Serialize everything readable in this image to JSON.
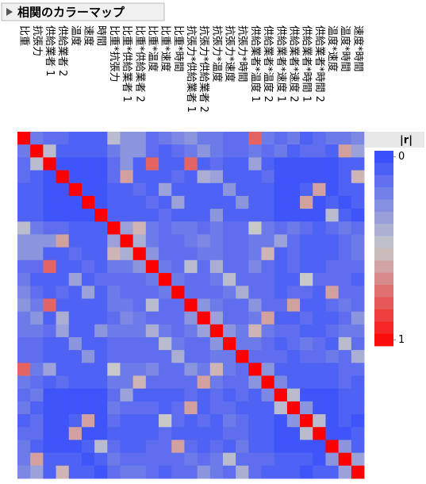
{
  "chart_data": {
    "type": "heatmap",
    "title": "相関のカラーマップ",
    "legend_title": "|r|",
    "labels": [
      "比重",
      "抗張力",
      "供給業者 1",
      "供給業者 2",
      "温度",
      "速度",
      "時間",
      "比重*抗張力",
      "比重*供給業者 1",
      "比重*供給業者 2",
      "比重*温度",
      "比重*速度",
      "比重*時間",
      "抗張力*供給業者 1",
      "抗張力*供給業者 2",
      "抗張力*温度",
      "抗張力*速度",
      "抗張力*時間",
      "供給業者*温度 1",
      "供給業者*温度 2",
      "供給業者*速度 1",
      "供給業者*速度 2",
      "供給業者*時間 1",
      "供給業者*時間 2",
      "温度*速度",
      "温度*時間",
      "速度*時間"
    ],
    "color_scale": {
      "low": "#3048ff",
      "mid": "#c8c8c8",
      "high": "#ff0000"
    },
    "legend_ticks": [
      0,
      1
    ],
    "matrix": [
      [
        1,
        0.2,
        0.15,
        0.15,
        0.1,
        0.1,
        0.1,
        0.45,
        0.3,
        0.3,
        0.15,
        0.2,
        0.25,
        0.3,
        0.2,
        0.2,
        0.15,
        0.15,
        0.75,
        0.2,
        0.15,
        0.2,
        0.1,
        0.15,
        0.2,
        0.2,
        0.25
      ],
      [
        0.2,
        1,
        0.45,
        0.1,
        0.1,
        0.1,
        0.1,
        0.2,
        0.3,
        0.3,
        0.15,
        0.1,
        0.15,
        0.2,
        0.3,
        0.2,
        0.15,
        0.15,
        0.2,
        0.15,
        0.2,
        0.1,
        0.15,
        0.15,
        0.1,
        0.6,
        0.35
      ],
      [
        0.15,
        0.45,
        1,
        0.05,
        0.05,
        0.05,
        0.05,
        0.15,
        0.3,
        0.1,
        0.75,
        0.1,
        0.1,
        0.75,
        0.1,
        0.15,
        0.1,
        0.1,
        0.35,
        0.1,
        0.05,
        0.05,
        0.05,
        0.05,
        0.05,
        0.1,
        0.1
      ],
      [
        0.15,
        0.1,
        0.05,
        1,
        0.05,
        0.05,
        0.05,
        0.15,
        0.6,
        0.1,
        0.1,
        0.1,
        0.15,
        0.1,
        0.4,
        0.35,
        0.1,
        0.1,
        0.1,
        0.15,
        0.05,
        0.05,
        0.05,
        0.05,
        0.05,
        0.1,
        0.55
      ],
      [
        0.1,
        0.1,
        0.05,
        0.05,
        1,
        0.05,
        0.05,
        0.1,
        0.1,
        0.15,
        0.1,
        0.35,
        0.1,
        0.1,
        0.1,
        0.1,
        0.3,
        0.1,
        0.1,
        0.1,
        0.05,
        0.05,
        0.1,
        0.6,
        0.05,
        0.1,
        0.1
      ],
      [
        0.1,
        0.1,
        0.05,
        0.05,
        0.05,
        1,
        0.05,
        0.1,
        0.1,
        0.1,
        0.15,
        0.1,
        0.35,
        0.1,
        0.1,
        0.1,
        0.1,
        0.3,
        0.1,
        0.1,
        0.05,
        0.05,
        0.6,
        0.05,
        0.1,
        0.05,
        0.1
      ],
      [
        0.1,
        0.1,
        0.05,
        0.05,
        0.05,
        0.05,
        1,
        0.1,
        0.1,
        0.1,
        0.1,
        0.15,
        0.1,
        0.1,
        0.1,
        0.3,
        0.1,
        0.1,
        0.1,
        0.1,
        0.05,
        0.05,
        0.05,
        0.05,
        0.45,
        0.1,
        0.05
      ],
      [
        0.45,
        0.2,
        0.15,
        0.15,
        0.1,
        0.1,
        0.1,
        1,
        0.35,
        0.55,
        0.2,
        0.15,
        0.2,
        0.2,
        0.15,
        0.2,
        0.15,
        0.15,
        0.5,
        0.2,
        0.15,
        0.2,
        0.15,
        0.1,
        0.15,
        0.2,
        0.15
      ],
      [
        0.3,
        0.3,
        0.3,
        0.6,
        0.1,
        0.1,
        0.1,
        0.35,
        1,
        0.4,
        0.2,
        0.15,
        0.15,
        0.2,
        0.25,
        0.2,
        0.15,
        0.15,
        0.2,
        0.2,
        0.35,
        0.15,
        0.1,
        0.1,
        0.1,
        0.15,
        0.2
      ],
      [
        0.3,
        0.3,
        0.1,
        0.1,
        0.15,
        0.1,
        0.1,
        0.55,
        0.4,
        1,
        0.3,
        0.15,
        0.15,
        0.15,
        0.2,
        0.2,
        0.15,
        0.15,
        0.2,
        0.55,
        0.1,
        0.15,
        0.1,
        0.1,
        0.1,
        0.15,
        0.2
      ],
      [
        0.15,
        0.15,
        0.75,
        0.1,
        0.1,
        0.15,
        0.1,
        0.2,
        0.2,
        0.3,
        1,
        0.2,
        0.15,
        0.45,
        0.15,
        0.4,
        0.15,
        0.15,
        0.25,
        0.15,
        0.1,
        0.15,
        0.1,
        0.1,
        0.15,
        0.15,
        0.15
      ],
      [
        0.2,
        0.1,
        0.1,
        0.1,
        0.35,
        0.1,
        0.15,
        0.15,
        0.15,
        0.15,
        0.2,
        1,
        0.2,
        0.15,
        0.15,
        0.2,
        0.45,
        0.15,
        0.15,
        0.15,
        0.1,
        0.1,
        0.5,
        0.15,
        0.15,
        0.15,
        0.1
      ],
      [
        0.25,
        0.15,
        0.1,
        0.15,
        0.1,
        0.35,
        0.1,
        0.2,
        0.15,
        0.15,
        0.15,
        0.2,
        1,
        0.15,
        0.15,
        0.15,
        0.2,
        0.4,
        0.15,
        0.15,
        0.1,
        0.15,
        0.15,
        0.1,
        0.6,
        0.15,
        0.15
      ],
      [
        0.3,
        0.2,
        0.75,
        0.1,
        0.1,
        0.1,
        0.1,
        0.2,
        0.2,
        0.15,
        0.45,
        0.15,
        0.15,
        1,
        0.3,
        0.2,
        0.15,
        0.15,
        0.3,
        0.15,
        0.15,
        0.6,
        0.1,
        0.1,
        0.15,
        0.2,
        0.15
      ],
      [
        0.2,
        0.3,
        0.1,
        0.4,
        0.1,
        0.1,
        0.1,
        0.15,
        0.25,
        0.2,
        0.15,
        0.15,
        0.15,
        0.3,
        1,
        0.35,
        0.15,
        0.15,
        0.2,
        0.6,
        0.1,
        0.1,
        0.15,
        0.1,
        0.1,
        0.15,
        0.3
      ],
      [
        0.2,
        0.2,
        0.15,
        0.35,
        0.1,
        0.1,
        0.3,
        0.2,
        0.2,
        0.2,
        0.4,
        0.2,
        0.15,
        0.2,
        0.35,
        1,
        0.3,
        0.2,
        0.55,
        0.2,
        0.15,
        0.15,
        0.1,
        0.1,
        0.15,
        0.2,
        0.2
      ],
      [
        0.15,
        0.15,
        0.1,
        0.1,
        0.3,
        0.1,
        0.1,
        0.15,
        0.15,
        0.15,
        0.15,
        0.45,
        0.2,
        0.15,
        0.15,
        0.3,
        1,
        0.2,
        0.2,
        0.15,
        0.1,
        0.15,
        0.2,
        0.15,
        0.1,
        0.45,
        0.15
      ],
      [
        0.15,
        0.15,
        0.1,
        0.1,
        0.1,
        0.3,
        0.1,
        0.15,
        0.15,
        0.15,
        0.15,
        0.15,
        0.4,
        0.15,
        0.15,
        0.2,
        0.2,
        1,
        0.15,
        0.15,
        0.15,
        0.1,
        0.15,
        0.15,
        0.2,
        0.15,
        0.4
      ],
      [
        0.75,
        0.2,
        0.35,
        0.1,
        0.1,
        0.1,
        0.1,
        0.5,
        0.2,
        0.2,
        0.25,
        0.15,
        0.15,
        0.3,
        0.2,
        0.55,
        0.2,
        0.15,
        1,
        0.3,
        0.1,
        0.1,
        0.1,
        0.1,
        0.1,
        0.15,
        0.15
      ],
      [
        0.2,
        0.15,
        0.1,
        0.15,
        0.1,
        0.1,
        0.1,
        0.2,
        0.2,
        0.55,
        0.15,
        0.15,
        0.15,
        0.15,
        0.6,
        0.2,
        0.15,
        0.15,
        0.3,
        1,
        0.25,
        0.1,
        0.1,
        0.1,
        0.1,
        0.15,
        0.1
      ],
      [
        0.15,
        0.2,
        0.05,
        0.05,
        0.05,
        0.05,
        0.05,
        0.15,
        0.35,
        0.1,
        0.1,
        0.1,
        0.1,
        0.15,
        0.1,
        0.15,
        0.1,
        0.15,
        0.1,
        0.25,
        1,
        0.45,
        0.05,
        0.05,
        0.05,
        0.1,
        0.1
      ],
      [
        0.2,
        0.1,
        0.05,
        0.05,
        0.05,
        0.05,
        0.05,
        0.2,
        0.15,
        0.15,
        0.15,
        0.1,
        0.15,
        0.6,
        0.1,
        0.15,
        0.15,
        0.1,
        0.1,
        0.1,
        0.45,
        1,
        0.3,
        0.05,
        0.05,
        0.1,
        0.1
      ],
      [
        0.1,
        0.15,
        0.05,
        0.05,
        0.1,
        0.6,
        0.05,
        0.15,
        0.1,
        0.1,
        0.1,
        0.5,
        0.15,
        0.1,
        0.15,
        0.1,
        0.2,
        0.15,
        0.1,
        0.1,
        0.05,
        0.3,
        1,
        0.45,
        0.05,
        0.1,
        0.05
      ],
      [
        0.15,
        0.15,
        0.05,
        0.05,
        0.6,
        0.05,
        0.05,
        0.1,
        0.1,
        0.1,
        0.1,
        0.15,
        0.1,
        0.1,
        0.1,
        0.1,
        0.15,
        0.15,
        0.1,
        0.1,
        0.05,
        0.05,
        0.45,
        1,
        0.05,
        0.05,
        0.1
      ],
      [
        0.2,
        0.1,
        0.05,
        0.05,
        0.05,
        0.1,
        0.45,
        0.15,
        0.1,
        0.1,
        0.15,
        0.15,
        0.6,
        0.15,
        0.1,
        0.15,
        0.1,
        0.2,
        0.1,
        0.1,
        0.05,
        0.05,
        0.05,
        0.05,
        1,
        0.3,
        0.1
      ],
      [
        0.2,
        0.6,
        0.1,
        0.1,
        0.1,
        0.05,
        0.1,
        0.2,
        0.15,
        0.15,
        0.15,
        0.15,
        0.15,
        0.2,
        0.15,
        0.2,
        0.45,
        0.15,
        0.15,
        0.15,
        0.1,
        0.1,
        0.1,
        0.05,
        0.3,
        1,
        0.35
      ],
      [
        0.25,
        0.35,
        0.1,
        0.55,
        0.1,
        0.1,
        0.05,
        0.15,
        0.2,
        0.2,
        0.15,
        0.1,
        0.15,
        0.15,
        0.3,
        0.2,
        0.15,
        0.4,
        0.15,
        0.1,
        0.1,
        0.1,
        0.05,
        0.1,
        0.1,
        0.35,
        1
      ]
    ]
  }
}
